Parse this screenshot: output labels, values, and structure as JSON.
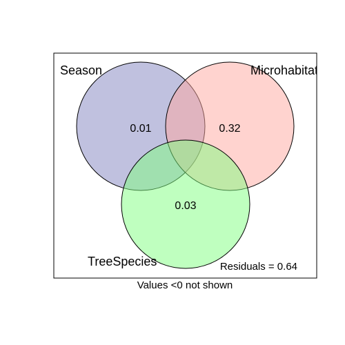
{
  "venn": {
    "sets": [
      {
        "name": "Season",
        "color": "#8183c0",
        "fill_opacity": 0.5
      },
      {
        "name": "Microhabitat",
        "color": "#ffa7a0",
        "fill_opacity": 0.5
      },
      {
        "name": "TreeSpecies",
        "color": "#80ff80",
        "fill_opacity": 0.5
      }
    ],
    "region_values": {
      "season_only": "0.01",
      "microhabitat_only": "0.32",
      "treespecies_only": "0.03"
    },
    "residuals": "Residuals = 0.64",
    "footnote": "Values <0 not shown"
  }
}
